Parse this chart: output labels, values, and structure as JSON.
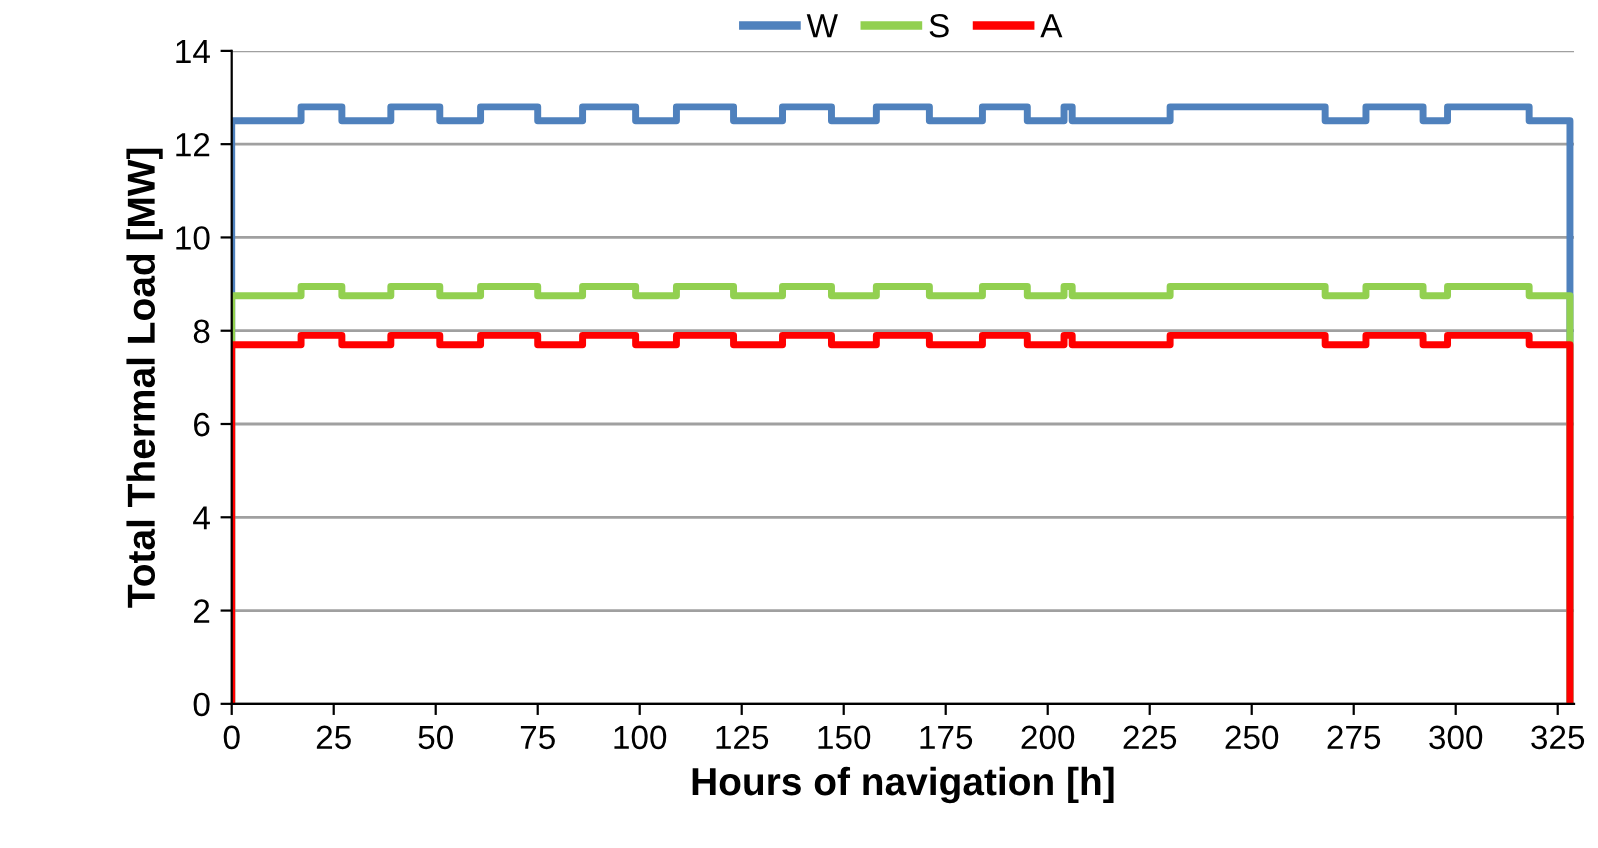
{
  "chart_data": {
    "type": "step",
    "xlabel": "Hours of navigation [h]",
    "ylabel": "Total Thermal Load [MW]",
    "xlim": [
      0,
      329
    ],
    "xticks": [
      0,
      25,
      50,
      75,
      100,
      125,
      150,
      175,
      200,
      225,
      250,
      275,
      300,
      325
    ],
    "ylim": [
      0,
      14
    ],
    "yticks": [
      0,
      2,
      4,
      6,
      8,
      10,
      12,
      14
    ],
    "grid": "y",
    "legend": "top",
    "series": [
      {
        "name": "W",
        "color": "#4f81bd",
        "x": [
          0,
          0,
          17,
          27,
          39,
          51,
          61,
          75,
          86,
          99,
          109,
          123,
          135,
          147,
          158,
          171,
          184,
          195,
          204,
          206,
          230,
          268,
          278,
          292,
          298,
          318,
          328
        ],
        "values": [
          0,
          12.5,
          12.8,
          12.5,
          12.8,
          12.5,
          12.8,
          12.5,
          12.8,
          12.5,
          12.8,
          12.5,
          12.8,
          12.5,
          12.8,
          12.5,
          12.8,
          12.5,
          12.8,
          12.5,
          12.8,
          12.5,
          12.8,
          12.5,
          12.8,
          12.5,
          0
        ]
      },
      {
        "name": "S",
        "color": "#92d050",
        "x": [
          0,
          0,
          17,
          27,
          39,
          51,
          61,
          75,
          86,
          99,
          109,
          123,
          135,
          147,
          158,
          171,
          184,
          195,
          204,
          206,
          230,
          268,
          278,
          292,
          298,
          318,
          328
        ],
        "values": [
          0,
          8.75,
          8.95,
          8.75,
          8.95,
          8.75,
          8.95,
          8.75,
          8.95,
          8.75,
          8.95,
          8.75,
          8.95,
          8.75,
          8.95,
          8.75,
          8.95,
          8.75,
          8.95,
          8.75,
          8.95,
          8.75,
          8.95,
          8.75,
          8.95,
          8.75,
          0
        ]
      },
      {
        "name": "A",
        "color": "#ff0000",
        "x": [
          0,
          0,
          17,
          27,
          39,
          51,
          61,
          75,
          86,
          99,
          109,
          123,
          135,
          147,
          158,
          171,
          184,
          195,
          204,
          206,
          230,
          268,
          278,
          292,
          298,
          318,
          328
        ],
        "values": [
          0,
          7.7,
          7.9,
          7.7,
          7.9,
          7.7,
          7.9,
          7.7,
          7.9,
          7.7,
          7.9,
          7.7,
          7.9,
          7.7,
          7.9,
          7.7,
          7.9,
          7.7,
          7.9,
          7.7,
          7.9,
          7.7,
          7.9,
          7.7,
          7.9,
          7.7,
          0
        ]
      }
    ]
  }
}
